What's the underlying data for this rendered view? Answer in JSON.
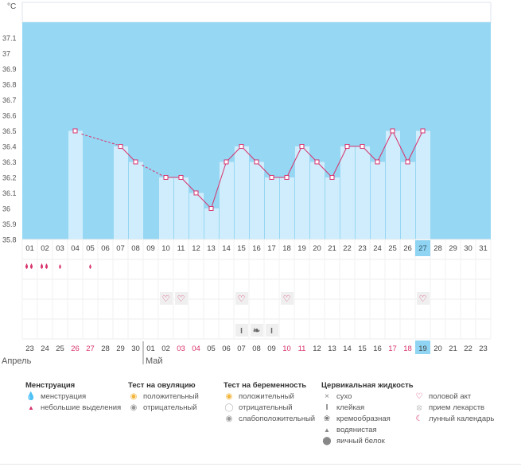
{
  "chart_data": {
    "type": "bar",
    "unit_label": "°C",
    "ylim": [
      35.8,
      37.2
    ],
    "yticks": [
      "37.1",
      "37",
      "36.9",
      "36.8",
      "36.7",
      "36.6",
      "36.5",
      "36.4",
      "36.3",
      "36.2",
      "36.1",
      "36",
      "35.9",
      "35.8"
    ],
    "days": [
      "01",
      "02",
      "03",
      "04",
      "05",
      "06",
      "07",
      "08",
      "09",
      "10",
      "11",
      "12",
      "13",
      "14",
      "15",
      "16",
      "17",
      "18",
      "19",
      "20",
      "21",
      "22",
      "23",
      "24",
      "25",
      "26",
      "27",
      "28",
      "29",
      "30",
      "31"
    ],
    "values": [
      null,
      null,
      null,
      36.5,
      null,
      null,
      36.4,
      36.3,
      null,
      36.2,
      36.2,
      36.1,
      36.0,
      36.3,
      36.4,
      36.3,
      36.2,
      36.2,
      36.4,
      36.3,
      36.2,
      36.4,
      36.4,
      36.3,
      36.5,
      36.3,
      36.5,
      null,
      null,
      null,
      null
    ],
    "interpolated_segments": [
      [
        4,
        6
      ],
      [
        8,
        9
      ]
    ],
    "highlight_day": "27",
    "rows": {
      "menstruation": {
        "01": "heavy",
        "02": "heavy",
        "03": "light",
        "05": "light"
      },
      "intercourse": [
        "10",
        "11",
        "15",
        "18",
        "27"
      ],
      "cervical_fluid": {
        "15": "sticky",
        "16": "creamy",
        "17": "sticky"
      }
    },
    "cal_days": [
      "23",
      "24",
      "25",
      "26",
      "27",
      "28",
      "29",
      "30",
      "01",
      "02",
      "03",
      "04",
      "05",
      "06",
      "07",
      "08",
      "09",
      "10",
      "11",
      "12",
      "13",
      "14",
      "15",
      "16",
      "17",
      "18",
      "19",
      "20",
      "21",
      "22",
      "23"
    ],
    "cal_red": [
      "26",
      "27",
      "03",
      "04",
      "10",
      "11",
      "17",
      "18"
    ],
    "cal_highlight": "19",
    "months": [
      "Апрель",
      "Май"
    ]
  },
  "legend": {
    "menstruation": {
      "title": "Менструация",
      "items": [
        "менструация",
        "небольшие выделения"
      ]
    },
    "ovulation": {
      "title": "Тест на овуляцию",
      "items": [
        "положительный",
        "отрицательный"
      ]
    },
    "pregnancy": {
      "title": "Тест на беременность",
      "items": [
        "положительный",
        "отрицательный",
        "слабоположительный"
      ]
    },
    "cervical": {
      "title": "Цервикальная жидкость",
      "items": [
        "сухо",
        "клейкая",
        "кремообразная",
        "водянистая",
        "яичный белок"
      ]
    },
    "other": {
      "items": [
        "половой акт",
        "прием лекарств",
        "лунный календарь"
      ]
    }
  },
  "colors": {
    "bg_band": "#96d7f3",
    "bar": "#cfedfc",
    "line": "#d8326c",
    "highlight": "#8fd4f2",
    "red_day": "#d8326c"
  }
}
